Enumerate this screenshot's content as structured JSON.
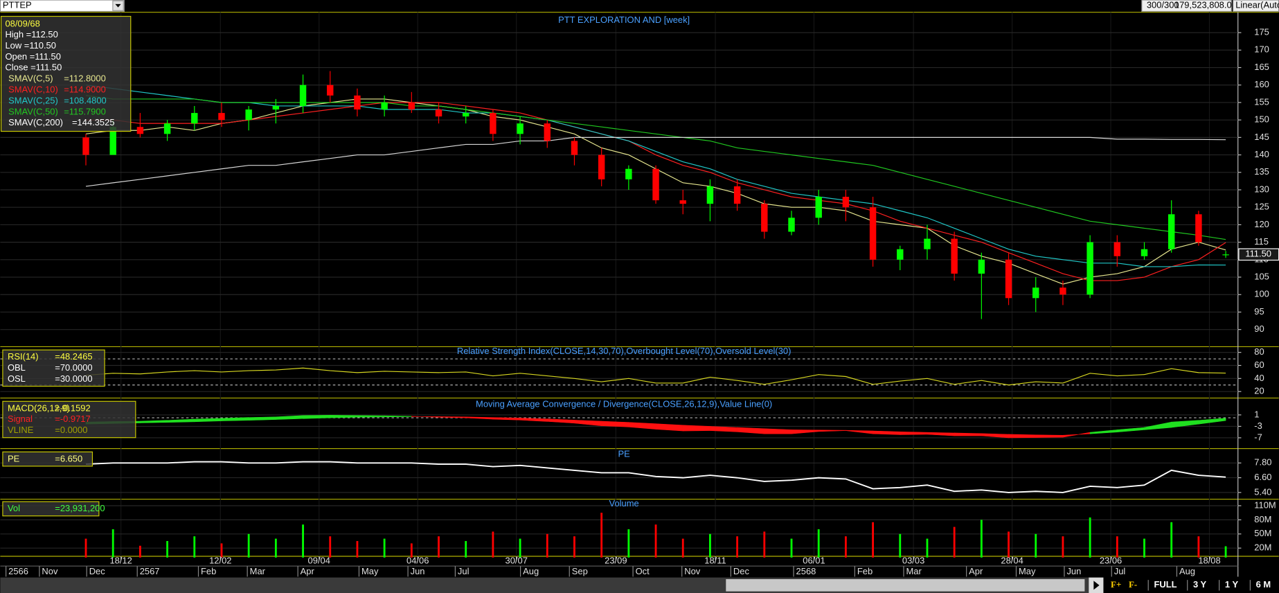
{
  "toolbar": {
    "symbol": "PTTEP",
    "count": "300/300",
    "value": "179,523,808.00",
    "scale": "Linear(Auto"
  },
  "price_panel": {
    "title": "PTT EXPLORATION AND [week]",
    "info": {
      "date": "08/09/68",
      "lines": [
        "High  =112.50",
        "Low  =110.50",
        "Open  =111.50",
        "Close  =111.50"
      ]
    },
    "ylim": [
      85,
      180
    ],
    "yticks": [
      90,
      95,
      100,
      105,
      110,
      115,
      120,
      125,
      130,
      135,
      140,
      145,
      150,
      155,
      160,
      165,
      170,
      175
    ],
    "last_label": "111.50",
    "candles": {
      "up_color": "#00ff00",
      "down_color": "#ff0000",
      "open": [
        145,
        140,
        148,
        146,
        149,
        152,
        150,
        153,
        154,
        160,
        157,
        153,
        155,
        153,
        151,
        152,
        146,
        149,
        144,
        140,
        133,
        136,
        127,
        126,
        131,
        126,
        118,
        122,
        128,
        125,
        110,
        113,
        116,
        106,
        110,
        99,
        102,
        100,
        115,
        111,
        113,
        123,
        111.5
      ],
      "high": [
        146,
        150,
        152,
        150,
        154,
        155,
        154,
        156,
        163,
        164,
        159,
        157,
        158,
        155,
        154,
        153,
        151,
        150,
        145,
        142,
        137,
        137,
        130,
        133,
        133,
        127,
        124,
        130,
        130,
        128,
        114,
        120,
        118,
        112,
        112,
        105,
        104,
        117,
        117,
        115,
        127,
        124,
        112.5
      ],
      "low": [
        137,
        141,
        145,
        144,
        147,
        148,
        147,
        149,
        152,
        155,
        151,
        151,
        152,
        149,
        149,
        144,
        143,
        142,
        137,
        131,
        130,
        126,
        123,
        121,
        124,
        116,
        117,
        120,
        121,
        108,
        107,
        110,
        104,
        93,
        97,
        95,
        97,
        99,
        108,
        110,
        112,
        114,
        110.5
      ],
      "close": [
        140,
        148,
        146,
        149,
        152,
        150,
        153,
        154,
        160,
        157,
        153,
        155,
        153,
        151,
        152,
        146,
        149,
        144,
        140,
        133,
        136,
        127,
        126,
        131,
        126,
        118,
        122,
        128,
        125,
        110,
        113,
        116,
        106,
        110,
        99,
        102,
        100,
        115,
        111,
        113,
        123,
        115,
        111.5
      ]
    },
    "series": [
      {
        "name": "SMAV(C,5)",
        "value_label": "=112.8000",
        "color": "#e8e890",
        "values": [
          146,
          147,
          147,
          148,
          147,
          149,
          150,
          152,
          154,
          155,
          156,
          156,
          155,
          154,
          153,
          151,
          150,
          148,
          146,
          142,
          140,
          136,
          132,
          131,
          129,
          126,
          125,
          125,
          124,
          121,
          120,
          119,
          114,
          111,
          109,
          106,
          103,
          105,
          106,
          108,
          113,
          115,
          112.8
        ]
      },
      {
        "name": "SMAV(C,10)",
        "value_label": "=114.9000",
        "color": "#ff2020",
        "values": [
          150,
          150,
          149,
          149,
          149,
          149,
          150,
          151,
          152,
          153,
          154,
          155,
          155,
          155,
          154,
          153,
          152,
          150,
          148,
          146,
          144,
          140,
          137,
          135,
          132,
          130,
          128,
          127,
          126,
          124,
          121,
          119,
          117,
          115,
          112,
          109,
          106,
          104,
          104,
          105,
          108,
          110,
          114.9
        ]
      },
      {
        "name": "SMAV(C,25)",
        "value_label": "=108.4800",
        "color": "#20c8c8",
        "values": [
          160,
          159,
          158,
          157,
          156,
          155,
          155,
          154,
          154,
          154,
          154,
          153,
          153,
          153,
          152,
          152,
          151,
          150,
          148,
          146,
          144,
          141,
          138,
          136,
          133,
          131,
          129,
          128,
          127,
          126,
          124,
          122,
          119,
          116,
          113,
          111,
          110,
          109,
          109,
          108,
          108,
          108.5,
          108.48
        ]
      },
      {
        "name": "SMAV(C,50)",
        "value_label": "=115.7900",
        "color": "#20c820",
        "values": [
          157,
          156,
          156,
          156,
          156,
          155,
          155,
          155,
          155,
          155,
          155,
          155,
          154,
          154,
          153,
          152,
          151,
          150,
          149,
          148,
          147,
          146,
          145,
          144,
          142,
          141,
          140,
          139,
          138,
          137,
          135,
          133,
          131,
          129,
          127,
          125,
          123,
          121,
          120,
          119,
          118,
          117,
          115.79
        ]
      },
      {
        "name": "SMAV(C,200)",
        "value_label": "=144.3525",
        "color": "#d8d8d8",
        "values": [
          131,
          132,
          133,
          134,
          135,
          136,
          137,
          137,
          138,
          139,
          140,
          140,
          141,
          142,
          143,
          143,
          144,
          144,
          145,
          145,
          145,
          145,
          145,
          145,
          145,
          145,
          145,
          145,
          145,
          145,
          145,
          145,
          145,
          145,
          145,
          145,
          145,
          145,
          144.5,
          144.5,
          144.4,
          144.4,
          144.35
        ]
      }
    ]
  },
  "rsi_panel": {
    "title": "Relative Strength Index(CLOSE,14,30,70),Overbought Level(70),Oversold Level(30)",
    "legend": [
      {
        "name": "RSI(14)",
        "value_label": "=48.2465",
        "color": "#ffff40"
      },
      {
        "name": "OBL",
        "value_label": "=70.0000",
        "color": "#ffffff"
      },
      {
        "name": "OSL",
        "value_label": "=30.0000",
        "color": "#ffffff"
      }
    ],
    "levels": [
      70,
      30
    ],
    "ylim": [
      11.25,
      87.5
    ],
    "yticks": [
      20,
      40,
      60,
      80
    ],
    "color": "#d8d820",
    "values": [
      45,
      48,
      47,
      50,
      52,
      50,
      52,
      53,
      56,
      52,
      49,
      51,
      50,
      49,
      50,
      44,
      48,
      44,
      40,
      35,
      40,
      33,
      33,
      42,
      37,
      31,
      38,
      46,
      43,
      31,
      36,
      40,
      31,
      37,
      30,
      35,
      33,
      48,
      44,
      46,
      55,
      49,
      48.25
    ]
  },
  "macd_panel": {
    "title": "Moving Average Convergence / Divergence(CLOSE,26,12,9),Value Line(0)",
    "legend": [
      {
        "name": "MACD(26,12,9)",
        "value_label": "=-0.1592",
        "color": "#ffff40"
      },
      {
        "name": "Signal",
        "value_label": "=-0.9717",
        "color": "#ff2020"
      },
      {
        "name": "VLINE",
        "value_label": "=0.0000",
        "color": "#a0a000"
      }
    ],
    "vline": 0,
    "ylim": [
      -10.5,
      6.6
    ],
    "yticks": [
      1,
      -3,
      -7
    ],
    "up_color": "#20e020",
    "down_color": "#ff1010",
    "macd": [
      -1.5,
      -1.3,
      -1.2,
      -0.9,
      -0.5,
      -0.2,
      0.1,
      0.3,
      0.8,
      0.9,
      0.8,
      0.7,
      0.5,
      0.2,
      0,
      -0.5,
      -0.8,
      -1.3,
      -1.9,
      -2.8,
      -3.2,
      -4,
      -4.6,
      -4.5,
      -4.9,
      -5.6,
      -5.6,
      -4.8,
      -4.5,
      -5.6,
      -5.9,
      -5.8,
      -6.3,
      -6.3,
      -7,
      -6.9,
      -6.8,
      -5.1,
      -4.2,
      -3.4,
      -1.5,
      -0.9,
      -0.16
    ],
    "signal": [
      -2.2,
      -2,
      -1.8,
      -1.6,
      -1.4,
      -1.1,
      -0.9,
      -0.6,
      -0.3,
      0,
      0.2,
      0.3,
      0.4,
      0.4,
      0.3,
      0.1,
      -0.1,
      -0.4,
      -0.8,
      -1.2,
      -1.6,
      -2.1,
      -2.6,
      -3,
      -3.4,
      -3.8,
      -4.2,
      -4.3,
      -4.4,
      -4.6,
      -4.9,
      -5.1,
      -5.3,
      -5.5,
      -5.8,
      -6,
      -6.1,
      -5.6,
      -5.0,
      -4.2,
      -3.4,
      -2.2,
      -0.97
    ]
  },
  "pe_panel": {
    "title": "PE",
    "legend": [
      {
        "name": "PE",
        "value_label": "=6.650",
        "color": "#ffff80"
      }
    ],
    "ylim": [
      4.92,
      8.9
    ],
    "yticks": [
      {
        "value": 5.4,
        "label": "5.40"
      },
      {
        "value": 6.6,
        "label": "6.60"
      },
      {
        "value": 7.8,
        "label": "7.80"
      }
    ],
    "color": "#ffffff",
    "values": [
      7.7,
      7.8,
      7.8,
      7.8,
      7.9,
      7.9,
      7.8,
      7.8,
      7.9,
      7.9,
      7.8,
      7.8,
      7.8,
      7.7,
      7.7,
      7.5,
      7.6,
      7.4,
      7.2,
      7.0,
      7.0,
      6.7,
      6.6,
      6.8,
      6.6,
      6.3,
      6.4,
      6.6,
      6.5,
      5.7,
      5.8,
      6.0,
      5.5,
      5.6,
      5.4,
      5.5,
      5.4,
      5.9,
      5.8,
      6.0,
      7.2,
      6.8,
      6.65
    ]
  },
  "volume_panel": {
    "title": "Volume",
    "legend": [
      {
        "name": "Vol",
        "value_label": "=23,931,200",
        "color": "#40ff40"
      }
    ],
    "ylim": [
      0,
      120000000
    ],
    "yticks": [
      {
        "value": 20000000,
        "label": "20M"
      },
      {
        "value": 50000000,
        "label": "50M"
      },
      {
        "value": 80000000,
        "label": "80M"
      },
      {
        "value": 110000000,
        "label": "110M"
      }
    ],
    "values": [
      40000000,
      60000000,
      25000000,
      35000000,
      45000000,
      30000000,
      50000000,
      40000000,
      70000000,
      45000000,
      35000000,
      40000000,
      30000000,
      45000000,
      35000000,
      55000000,
      40000000,
      50000000,
      45000000,
      95000000,
      60000000,
      70000000,
      40000000,
      50000000,
      45000000,
      55000000,
      40000000,
      60000000,
      45000000,
      75000000,
      50000000,
      40000000,
      65000000,
      80000000,
      55000000,
      50000000,
      45000000,
      85000000,
      45000000,
      40000000,
      75000000,
      45000000,
      23931200
    ]
  },
  "x_axis": {
    "dates": [
      "18/12",
      "12/02",
      "09/04",
      "04/06",
      "30/07",
      "23/09",
      "18/11",
      "06/01",
      "03/03",
      "28/04",
      "23/06",
      "18/08"
    ],
    "months": [
      "2566",
      "Nov",
      "Dec",
      "2567",
      "Feb",
      "Mar",
      "Apr",
      "May",
      "Jun",
      "Jul",
      "Aug",
      "Sep",
      "Oct",
      "Nov",
      "Dec",
      "2568",
      "Feb",
      "Mar",
      "Apr",
      "May",
      "Jun",
      "Jul",
      "Aug"
    ]
  },
  "footer": {
    "zoom": [
      "F+",
      "F-"
    ],
    "buttons": [
      "FULL",
      "3 Y",
      "1 Y",
      "6 M"
    ]
  }
}
